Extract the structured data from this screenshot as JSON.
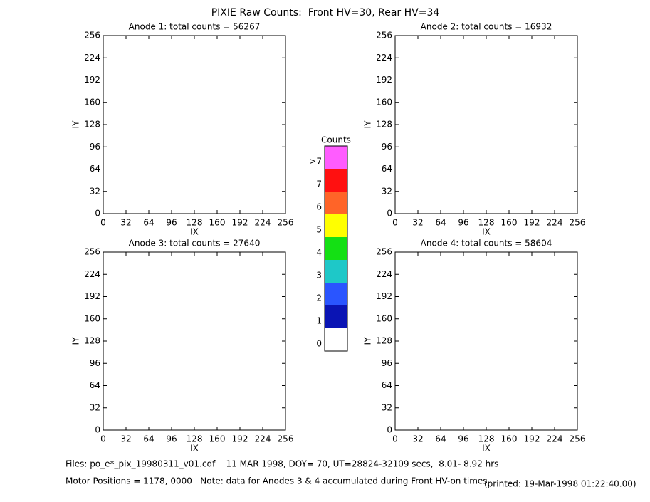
{
  "title": "PIXIE Raw Counts:  Front HV=30, Rear HV=34",
  "chart_data": [
    {
      "type": "heatmap",
      "title": "Anode 1: total counts = 56267",
      "x_label": "IX",
      "y_label": "IY",
      "xlim": [
        0,
        256
      ],
      "xticks": [
        0,
        32,
        64,
        96,
        128,
        160,
        192,
        224,
        256
      ],
      "ylim": [
        0,
        256
      ],
      "yticks": [
        0,
        32,
        64,
        96,
        128,
        160,
        192,
        224,
        256
      ]
    },
    {
      "type": "heatmap",
      "title": "Anode 2: total counts = 16932",
      "x_label": "IX",
      "y_label": "IY",
      "xlim": [
        0,
        256
      ],
      "xticks": [
        0,
        32,
        64,
        96,
        128,
        160,
        192,
        224,
        256
      ],
      "ylim": [
        0,
        256
      ],
      "yticks": [
        0,
        32,
        64,
        96,
        128,
        160,
        192,
        224,
        256
      ]
    },
    {
      "type": "heatmap",
      "title": "Anode 3: total counts = 27640",
      "x_label": "IX",
      "y_label": "IY",
      "xlim": [
        0,
        256
      ],
      "xticks": [
        0,
        32,
        64,
        96,
        128,
        160,
        192,
        224,
        256
      ],
      "ylim": [
        0,
        256
      ],
      "yticks": [
        0,
        32,
        64,
        96,
        128,
        160,
        192,
        224,
        256
      ]
    },
    {
      "type": "heatmap",
      "title": "Anode 4: total counts = 58604",
      "x_label": "IX",
      "y_label": "IY",
      "xlim": [
        0,
        256
      ],
      "xticks": [
        0,
        32,
        64,
        96,
        128,
        160,
        192,
        224,
        256
      ],
      "ylim": [
        0,
        256
      ],
      "yticks": [
        0,
        32,
        64,
        96,
        128,
        160,
        192,
        224,
        256
      ]
    }
  ],
  "colorbar": {
    "title": "Counts",
    "ticks": [
      0,
      1,
      2,
      3,
      4,
      5,
      6,
      7,
      {
        "value": 8,
        "label": ">7"
      }
    ],
    "colors": [
      "#ffffff",
      "#0a14b4",
      "#2a55ff",
      "#1ec8c8",
      "#14e014",
      "#ffff00",
      "#ff6428",
      "#ff1010",
      "#ff5cff"
    ]
  },
  "footer": {
    "files": "Files: po_e*_pix_19980311_v01.cdf    11 MAR 1998, DOY= 70, UT=28824-32109 secs,  8.01- 8.92 hrs",
    "motor": "Motor Positions = 1178, 0000   Note: data for Anodes 3 & 4 accumulated during Front HV-on times",
    "printed": "(printed: 19-Mar-1998 01:22:40.00)"
  }
}
